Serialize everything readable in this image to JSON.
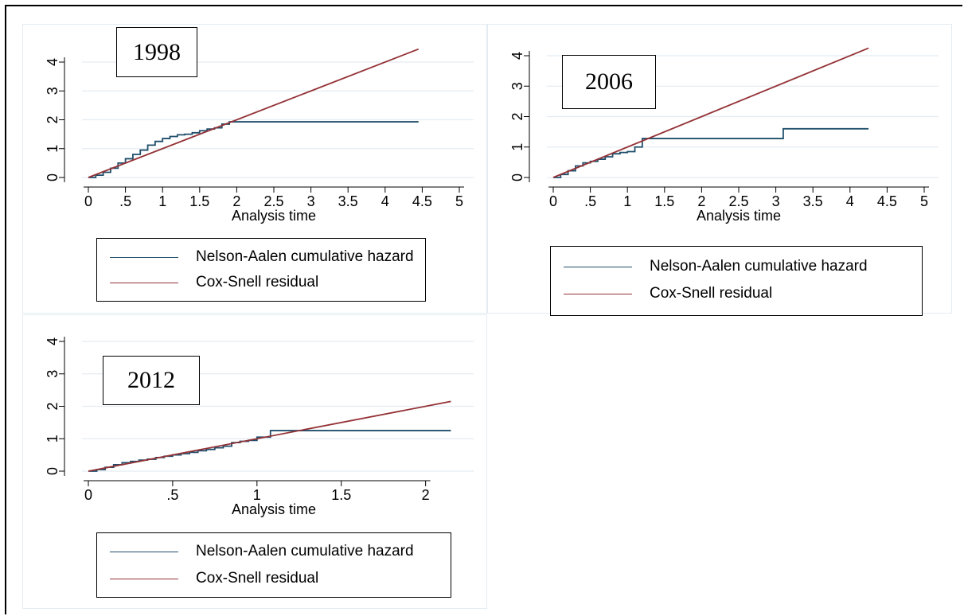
{
  "colors": {
    "nelson_aalen": "#1f4e6b",
    "cox_snell": "#943236",
    "grid": "#e4ecf2"
  },
  "chart_data": [
    {
      "type": "line",
      "annotation": "1998",
      "xlabel": "Analysis time",
      "ylabel": "",
      "xlim": [
        0,
        5
      ],
      "ylim": [
        0,
        4
      ],
      "x_ticks": [
        0,
        0.5,
        1,
        1.5,
        2,
        2.5,
        3,
        3.5,
        4,
        4.5,
        5
      ],
      "x_tick_labels": [
        "0",
        ".5",
        "1",
        "1.5",
        "2",
        "2.5",
        "3",
        "3.5",
        "4",
        "4.5",
        "5"
      ],
      "y_ticks": [
        0,
        1,
        2,
        3,
        4
      ],
      "y_tick_labels": [
        "0",
        "1",
        "2",
        "3",
        "4"
      ],
      "grid": "horizontal",
      "legend_position": "bottom",
      "series": [
        {
          "name": "Nelson-Aalen cumulative hazard",
          "step": true,
          "points": [
            [
              0,
              0
            ],
            [
              0.1,
              0.08
            ],
            [
              0.2,
              0.18
            ],
            [
              0.3,
              0.32
            ],
            [
              0.4,
              0.5
            ],
            [
              0.5,
              0.65
            ],
            [
              0.6,
              0.8
            ],
            [
              0.7,
              0.95
            ],
            [
              0.8,
              1.12
            ],
            [
              0.9,
              1.25
            ],
            [
              1.0,
              1.35
            ],
            [
              1.1,
              1.42
            ],
            [
              1.2,
              1.48
            ],
            [
              1.3,
              1.5
            ],
            [
              1.4,
              1.55
            ],
            [
              1.5,
              1.62
            ],
            [
              1.6,
              1.68
            ],
            [
              1.7,
              1.72
            ],
            [
              1.8,
              1.85
            ],
            [
              1.9,
              1.93
            ],
            [
              4.45,
              1.93
            ]
          ]
        },
        {
          "name": "Cox-Snell residual",
          "step": false,
          "points": [
            [
              0,
              0
            ],
            [
              4.45,
              4.45
            ]
          ]
        }
      ]
    },
    {
      "type": "line",
      "annotation": "2006",
      "xlabel": "Analysis time",
      "ylabel": "",
      "xlim": [
        0,
        5
      ],
      "ylim": [
        0,
        4
      ],
      "x_ticks": [
        0,
        0.5,
        1,
        1.5,
        2,
        2.5,
        3,
        3.5,
        4,
        4.5,
        5
      ],
      "x_tick_labels": [
        "0",
        ".5",
        "1",
        "1.5",
        "2",
        "2.5",
        "3",
        "3.5",
        "4",
        "4.5",
        "5"
      ],
      "y_ticks": [
        0,
        1,
        2,
        3,
        4
      ],
      "y_tick_labels": [
        "0",
        "1",
        "2",
        "3",
        "4"
      ],
      "grid": "horizontal",
      "legend_position": "bottom",
      "series": [
        {
          "name": "Nelson-Aalen cumulative hazard",
          "step": true,
          "points": [
            [
              0,
              0
            ],
            [
              0.1,
              0.1
            ],
            [
              0.2,
              0.22
            ],
            [
              0.3,
              0.38
            ],
            [
              0.4,
              0.48
            ],
            [
              0.5,
              0.53
            ],
            [
              0.6,
              0.6
            ],
            [
              0.7,
              0.68
            ],
            [
              0.8,
              0.78
            ],
            [
              0.9,
              0.82
            ],
            [
              1.0,
              0.85
            ],
            [
              1.1,
              1.0
            ],
            [
              1.2,
              1.28
            ],
            [
              2.6,
              1.28
            ],
            [
              3.1,
              1.6
            ],
            [
              4.25,
              1.6
            ]
          ]
        },
        {
          "name": "Cox-Snell residual",
          "step": false,
          "points": [
            [
              0,
              0
            ],
            [
              4.25,
              4.25
            ]
          ]
        }
      ]
    },
    {
      "type": "line",
      "annotation": "2012",
      "xlabel": "Analysis time",
      "ylabel": "",
      "xlim": [
        0,
        2.2
      ],
      "ylim": [
        0,
        4
      ],
      "x_ticks": [
        0,
        0.5,
        1,
        1.5,
        2
      ],
      "x_tick_labels": [
        "0",
        ".5",
        "1",
        "1.5",
        "2"
      ],
      "y_ticks": [
        0,
        1,
        2,
        3,
        4
      ],
      "y_tick_labels": [
        "0",
        "1",
        "2",
        "3",
        "4"
      ],
      "grid": "horizontal",
      "legend_position": "bottom",
      "series": [
        {
          "name": "Nelson-Aalen cumulative hazard",
          "step": true,
          "points": [
            [
              0,
              0
            ],
            [
              0.05,
              0.05
            ],
            [
              0.1,
              0.12
            ],
            [
              0.15,
              0.2
            ],
            [
              0.2,
              0.26
            ],
            [
              0.25,
              0.3
            ],
            [
              0.3,
              0.34
            ],
            [
              0.35,
              0.37
            ],
            [
              0.4,
              0.42
            ],
            [
              0.45,
              0.46
            ],
            [
              0.5,
              0.5
            ],
            [
              0.55,
              0.54
            ],
            [
              0.6,
              0.58
            ],
            [
              0.65,
              0.63
            ],
            [
              0.7,
              0.67
            ],
            [
              0.75,
              0.72
            ],
            [
              0.8,
              0.77
            ],
            [
              0.85,
              0.88
            ],
            [
              0.9,
              0.92
            ],
            [
              0.95,
              0.95
            ],
            [
              1.0,
              1.05
            ],
            [
              1.08,
              1.25
            ],
            [
              2.15,
              1.25
            ]
          ]
        },
        {
          "name": "Cox-Snell residual",
          "step": false,
          "points": [
            [
              0,
              0
            ],
            [
              2.15,
              2.15
            ]
          ]
        }
      ]
    }
  ]
}
